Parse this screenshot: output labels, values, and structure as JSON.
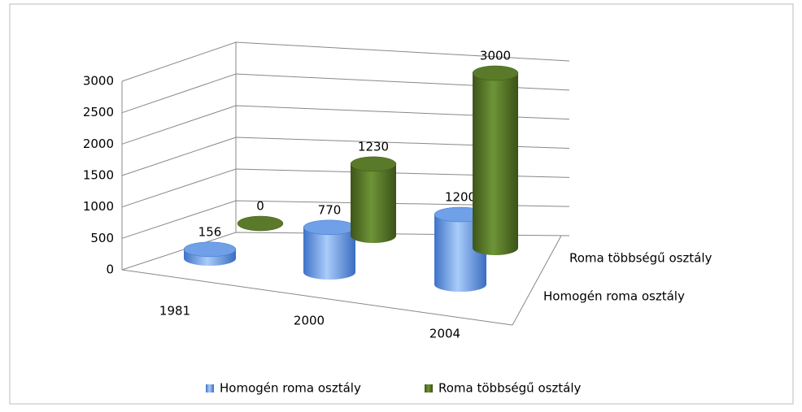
{
  "chart_data": {
    "type": "bar3d",
    "categories": [
      "1981",
      "2000",
      "2004"
    ],
    "series": [
      {
        "name": "Homogén roma osztály",
        "color": "#6fa0e8",
        "values": [
          156,
          770,
          1200
        ]
      },
      {
        "name": "Roma többségű osztály",
        "color": "#5a7a2a",
        "values": [
          0,
          1230,
          3000
        ]
      }
    ],
    "ylim": [
      0,
      3000
    ],
    "yticks": [
      0,
      500,
      1000,
      1500,
      2000,
      2500,
      3000
    ],
    "grid": true,
    "legend": "bottom"
  }
}
